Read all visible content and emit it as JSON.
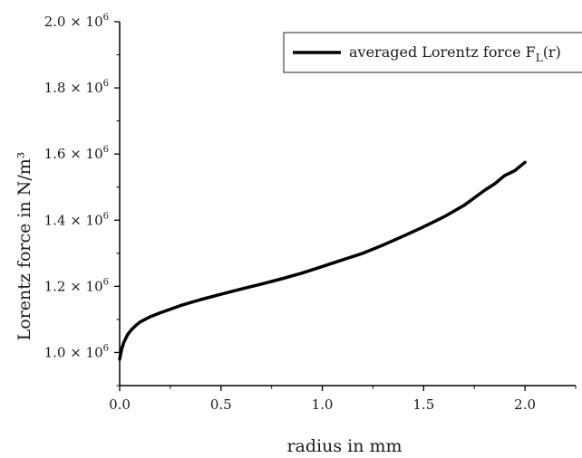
{
  "chart_data": {
    "type": "line",
    "xlabel": "radius in mm",
    "ylabel": "Lorentz force in N/m³",
    "xlim": [
      0.0,
      2.25
    ],
    "ylim": [
      900000,
      2000000
    ],
    "x_ticks": [
      {
        "value": 0.0,
        "label": "0.0"
      },
      {
        "value": 0.5,
        "label": "0.5"
      },
      {
        "value": 1.0,
        "label": "1.0"
      },
      {
        "value": 1.5,
        "label": "1.5"
      },
      {
        "value": 2.0,
        "label": "2.0"
      }
    ],
    "y_ticks": [
      {
        "value": 1000000,
        "mantissa": "1.0 × 10",
        "exp": "6"
      },
      {
        "value": 1200000,
        "mantissa": "1.2 × 10",
        "exp": "6"
      },
      {
        "value": 1400000,
        "mantissa": "1.4 × 10",
        "exp": "6"
      },
      {
        "value": 1600000,
        "mantissa": "1.6 × 10",
        "exp": "6"
      },
      {
        "value": 1800000,
        "mantissa": "1.8 × 10",
        "exp": "6"
      },
      {
        "value": 2000000,
        "mantissa": "2.0 × 10",
        "exp": "6"
      }
    ],
    "legend": {
      "placement": "top-right",
      "base": "averaged Lorentz force F",
      "sub": "L",
      "tail": "(r)"
    },
    "grid": false,
    "line_color": "#000000",
    "series": [
      {
        "x": [
          0.0,
          0.01,
          0.02,
          0.04,
          0.06,
          0.08,
          0.1,
          0.15,
          0.2,
          0.3,
          0.4,
          0.5,
          0.6,
          0.7,
          0.8,
          0.9,
          1.0,
          1.1,
          1.2,
          1.3,
          1.4,
          1.5,
          1.6,
          1.7,
          1.8,
          1.85,
          1.9,
          1.95,
          2.0
        ],
        "y": [
          980000,
          1010000,
          1030000,
          1055000,
          1070000,
          1082000,
          1092000,
          1108000,
          1120000,
          1142000,
          1160000,
          1176000,
          1192000,
          1207000,
          1223000,
          1240000,
          1260000,
          1280000,
          1300000,
          1325000,
          1352000,
          1380000,
          1410000,
          1445000,
          1490000,
          1510000,
          1535000,
          1550000,
          1575000
        ]
      }
    ]
  }
}
